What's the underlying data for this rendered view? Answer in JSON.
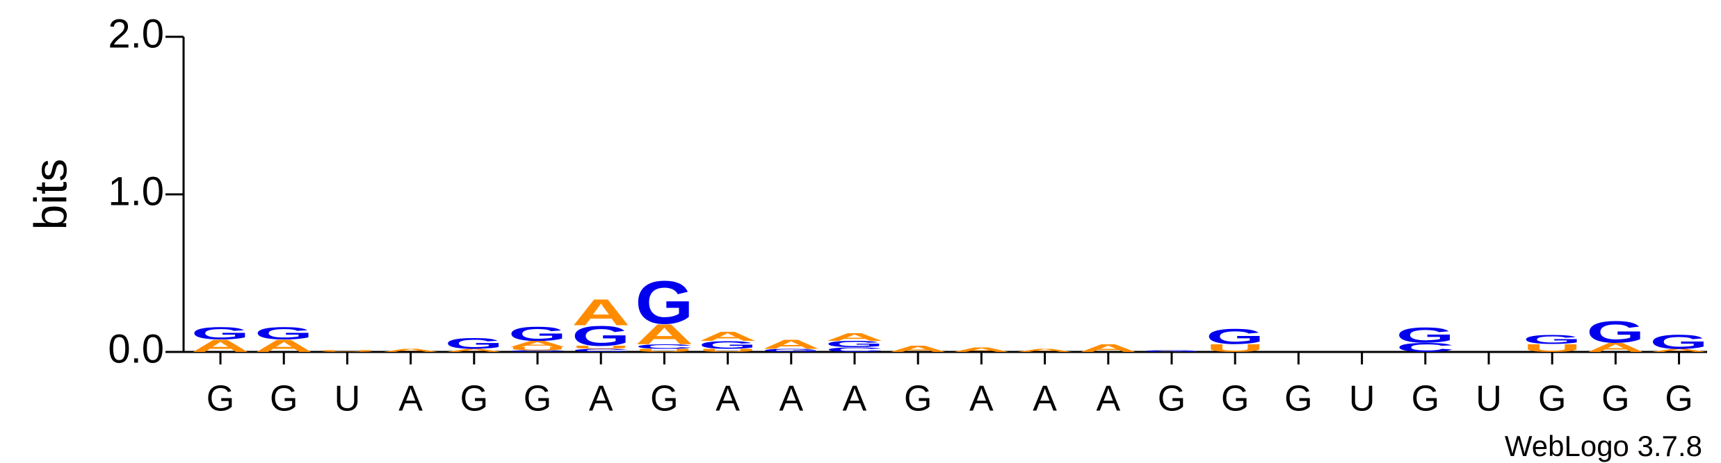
{
  "chart_data": {
    "type": "logo",
    "ylabel": "bits",
    "footer": "WebLogo 3.7.8",
    "categories": [
      "G",
      "G",
      "U",
      "A",
      "G",
      "G",
      "A",
      "G",
      "A",
      "A",
      "A",
      "G",
      "A",
      "A",
      "A",
      "G",
      "G",
      "G",
      "U",
      "G",
      "U",
      "G",
      "G",
      "G"
    ],
    "series": [
      {
        "name": "A",
        "color": "#ff8c00",
        "values": [
          0.08,
          0.08,
          0,
          0.02,
          0.02,
          0.04,
          0.17,
          0.13,
          0.06,
          0.06,
          0.05,
          0.04,
          0.03,
          0.02,
          0.05,
          0,
          0,
          0,
          0,
          0,
          0,
          0,
          0.06,
          0.02
        ]
      },
      {
        "name": "C",
        "color": "#0000ee",
        "values": [
          0,
          0,
          0,
          0,
          0,
          0.01,
          0.02,
          0.03,
          0,
          0,
          0.03,
          0,
          0,
          0,
          0,
          0,
          0,
          0,
          0,
          0.06,
          0,
          0,
          0,
          0
        ]
      },
      {
        "name": "G",
        "color": "#0000ee",
        "values": [
          0.08,
          0.08,
          0,
          0,
          0.07,
          0.09,
          0.13,
          0.28,
          0.05,
          0.02,
          0.04,
          0,
          0,
          0,
          0,
          0.01,
          0.1,
          0,
          0,
          0.1,
          0,
          0.06,
          0.14,
          0.09
        ]
      },
      {
        "name": "U",
        "color": "#ff8c00",
        "values": [
          0,
          0,
          0.01,
          0,
          0,
          0.02,
          0.02,
          0.02,
          0.02,
          0,
          0,
          0,
          0,
          0,
          0,
          0,
          0.05,
          0,
          0,
          0,
          0,
          0.05,
          0,
          0
        ]
      }
    ],
    "ylim": [
      0,
      2
    ],
    "yticks": [
      {
        "value": 0,
        "label": "0.0"
      },
      {
        "value": 1,
        "label": "1.0"
      },
      {
        "value": 2,
        "label": "2.0"
      }
    ]
  }
}
